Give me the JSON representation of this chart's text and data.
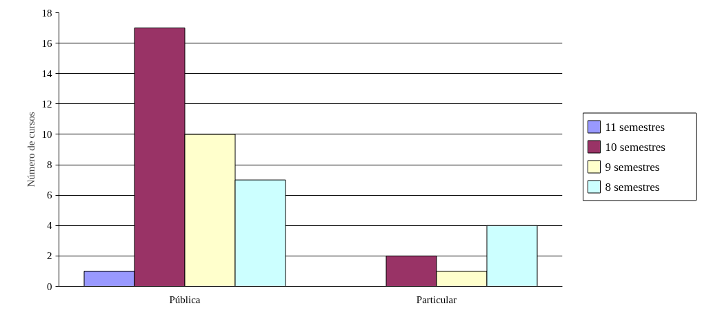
{
  "chart_data": {
    "type": "bar",
    "ylabel": "Número de cursos",
    "categories": [
      "Pública",
      "Particular"
    ],
    "series": [
      {
        "name": "11 semestres",
        "color": "#9999ff",
        "values": [
          1,
          0
        ]
      },
      {
        "name": "10 semestres",
        "color": "#993366",
        "values": [
          17,
          2
        ]
      },
      {
        "name": "9 semestres",
        "color": "#ffffcc",
        "values": [
          10,
          1
        ]
      },
      {
        "name": "8 semestres",
        "color": "#ccffff",
        "values": [
          7,
          4
        ]
      }
    ],
    "ylim": [
      0,
      18
    ],
    "yticks": [
      0,
      2,
      4,
      6,
      8,
      10,
      12,
      14,
      16,
      18
    ],
    "grid": "y",
    "legend": "right"
  }
}
